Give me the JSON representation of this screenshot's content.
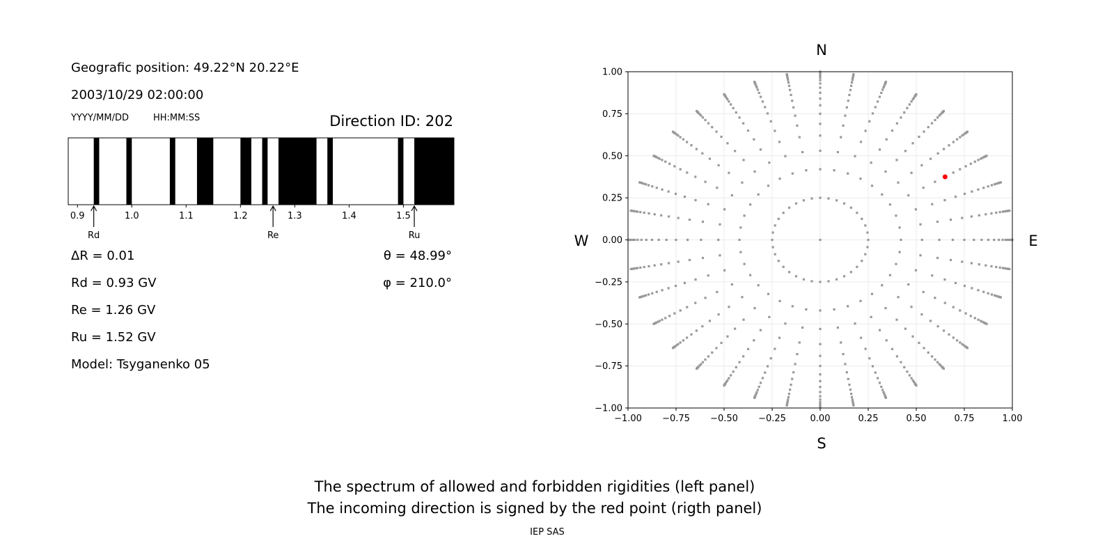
{
  "info": {
    "position": "Geografic position: 49.22°N 20.22°E",
    "datetime": "2003/10/29 02:00:00",
    "date_format": "YYYY/MM/DD",
    "time_format": "HH:MM:SS",
    "direction_id": "Direction ID: 202",
    "delta_r": "ΔR = 0.01",
    "rd": "Rd = 0.93 GV",
    "re": "Re = 1.26 GV",
    "ru": "Ru = 1.52 GV",
    "model": "Model: Tsyganenko 05",
    "theta": "θ = 48.99°",
    "phi": "φ = 210.0°"
  },
  "caption": {
    "line1": "The spectrum of allowed and forbidden rigidities (left panel)",
    "line2": "The incoming direction is signed by the red point (rigth panel)",
    "credit": "IEP SAS"
  },
  "chart_data": [
    {
      "type": "bar",
      "subtype": "rigidity-spectrum",
      "xlim": [
        0.883,
        1.593
      ],
      "xticks": [
        "0.9",
        "1.0",
        "1.1",
        "1.2",
        "1.3",
        "1.4",
        "1.5"
      ],
      "forbidden_color": "#000000",
      "allowed_color": "#ffffff",
      "forbidden_intervals": [
        [
          0.93,
          0.94
        ],
        [
          0.99,
          1.0
        ],
        [
          1.07,
          1.08
        ],
        [
          1.12,
          1.15
        ],
        [
          1.2,
          1.22
        ],
        [
          1.24,
          1.25
        ],
        [
          1.27,
          1.34
        ],
        [
          1.36,
          1.37
        ],
        [
          1.49,
          1.5
        ],
        [
          1.52,
          1.593
        ]
      ],
      "markers": [
        {
          "label": "Rd",
          "value": 0.93
        },
        {
          "label": "Re",
          "value": 1.26
        },
        {
          "label": "Ru",
          "value": 1.52
        }
      ]
    },
    {
      "type": "scatter",
      "xlim": [
        -1,
        1
      ],
      "ylim": [
        -1,
        1
      ],
      "xticks": [
        "−1.00",
        "−0.75",
        "−0.50",
        "−0.25",
        "0.00",
        "0.25",
        "0.50",
        "0.75",
        "1.00"
      ],
      "yticks": [
        "−1.00",
        "−0.75",
        "−0.50",
        "−0.25",
        "0.00",
        "0.25",
        "0.50",
        "0.75",
        "1.00"
      ],
      "grid": true,
      "compass": {
        "n": "N",
        "s": "S",
        "w": "W",
        "e": "E"
      },
      "point_color": "#999999",
      "highlight_color": "#ff0000",
      "grid_azimuth_step_deg": 10,
      "grid_ray_radii": [
        0.42,
        0.53,
        0.62,
        0.69,
        0.75,
        0.8,
        0.84,
        0.875,
        0.905,
        0.93,
        0.95,
        0.965,
        0.975,
        0.985,
        0.99,
        0.995,
        1.0
      ],
      "inner_ring_radius": 0.25,
      "center_point": [
        0,
        0
      ],
      "highlight_point": [
        0.65,
        0.375
      ]
    }
  ]
}
